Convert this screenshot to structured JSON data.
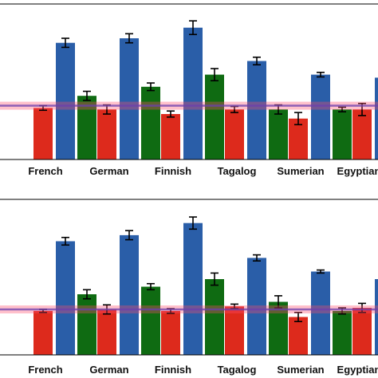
{
  "chart_data": [
    {
      "type": "bar",
      "categories": [
        "",
        "French",
        "German",
        "Finnish",
        "Tagalog",
        "Sumerian",
        "Egyptian"
      ],
      "ylim": [
        0,
        1
      ],
      "baseline": 0.355,
      "series": [
        {
          "color": "#2a5ea8",
          "values": [
            null,
            0.77,
            0.8,
            0.87,
            0.65,
            0.56,
            0.54
          ],
          "errors": [
            null,
            0.03,
            0.03,
            0.045,
            0.025,
            0.015,
            0.025
          ]
        },
        {
          "color": "#0f6b12",
          "values": [
            null,
            0.42,
            0.48,
            0.56,
            0.33,
            0.33,
            0.34
          ],
          "errors": [
            null,
            0.03,
            0.025,
            0.04,
            0.03,
            0.015,
            0.05
          ]
        },
        {
          "color": "#dd2a1c",
          "values": [
            0.34,
            0.33,
            0.3,
            0.33,
            0.27,
            0.33,
            null
          ],
          "errors": [
            0.015,
            0.03,
            0.02,
            0.02,
            0.04,
            0.04,
            null
          ]
        }
      ]
    },
    {
      "type": "bar",
      "categories": [
        "",
        "French",
        "German",
        "Finnish",
        "Tagalog",
        "Sumerian",
        "Egyptian"
      ],
      "ylim": [
        0,
        1
      ],
      "baseline": 0.3,
      "series": [
        {
          "color": "#2a5ea8",
          "values": [
            null,
            0.75,
            0.79,
            0.87,
            0.64,
            0.55,
            0.5
          ],
          "errors": [
            null,
            0.025,
            0.03,
            0.04,
            0.02,
            0.01,
            0.02
          ]
        },
        {
          "color": "#0f6b12",
          "values": [
            null,
            0.4,
            0.45,
            0.5,
            0.35,
            0.29,
            0.3
          ],
          "errors": [
            null,
            0.03,
            0.02,
            0.04,
            0.04,
            0.02,
            0.06
          ]
        },
        {
          "color": "#dd2a1c",
          "values": [
            0.29,
            0.3,
            0.29,
            0.32,
            0.25,
            0.31,
            null
          ],
          "errors": [
            0.01,
            0.03,
            0.015,
            0.015,
            0.03,
            0.03,
            null
          ]
        }
      ]
    }
  ]
}
